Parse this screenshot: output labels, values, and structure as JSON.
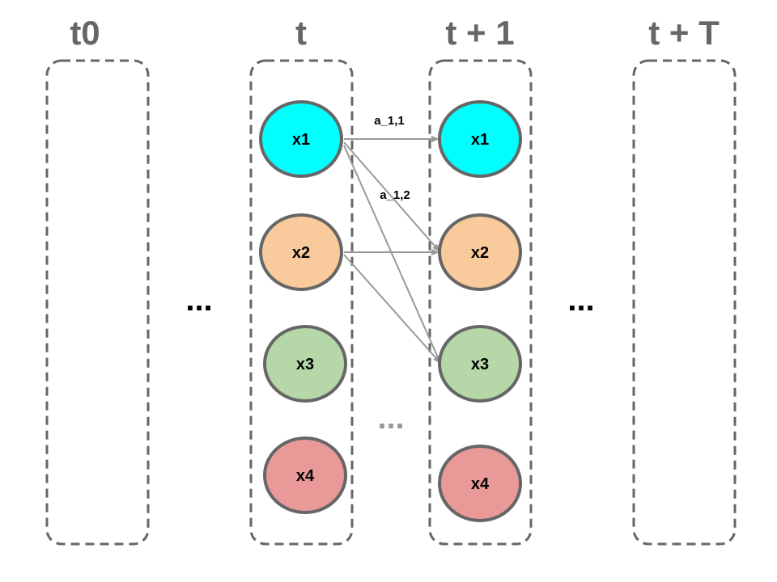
{
  "columns": [
    {
      "title": "t0"
    },
    {
      "title": "t"
    },
    {
      "title": "t + 1"
    },
    {
      "title": "t + T"
    }
  ],
  "nodes_t": [
    {
      "label": "x1",
      "color": "#00ffff"
    },
    {
      "label": "x2",
      "color": "#f9cb9c"
    },
    {
      "label": "x3",
      "color": "#b6d7a8"
    },
    {
      "label": "x4",
      "color": "#ea9999"
    }
  ],
  "nodes_t1": [
    {
      "label": "x1",
      "color": "#00ffff"
    },
    {
      "label": "x2",
      "color": "#f9cb9c"
    },
    {
      "label": "x3",
      "color": "#b6d7a8"
    },
    {
      "label": "x4",
      "color": "#ea9999"
    }
  ],
  "edges": [
    {
      "from": "x1",
      "to": "x1",
      "label": "a_1,1"
    },
    {
      "from": "x1",
      "to": "x2",
      "label": "a_1,2"
    },
    {
      "from": "x1",
      "to": "x3",
      "label": ""
    },
    {
      "from": "x2",
      "to": "x2",
      "label": ""
    },
    {
      "from": "x2",
      "to": "x3",
      "label": ""
    }
  ],
  "ellipsis": {
    "left": "...",
    "middle": "...",
    "right": "..."
  },
  "colors": {
    "outline": "#666666",
    "edge": "#999999",
    "title": "#666666"
  }
}
